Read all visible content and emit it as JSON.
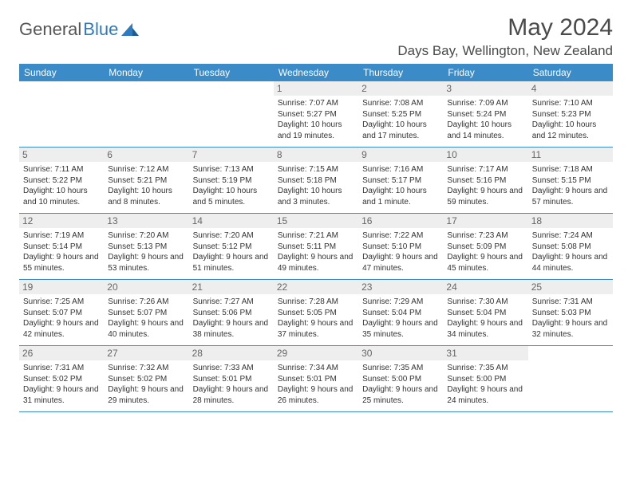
{
  "logo": {
    "text1": "General",
    "text2": "Blue"
  },
  "title": "May 2024",
  "location": "Days Bay, Wellington, New Zealand",
  "colors": {
    "header_bg": "#3b8bc8",
    "header_text": "#ffffff",
    "logo_gray": "#555555",
    "logo_blue": "#2f7bbf",
    "title_color": "#4a4a4a",
    "daynum_bg": "#eeeeee",
    "border": "#3b8bc8",
    "body_text": "#333333"
  },
  "dayNames": [
    "Sunday",
    "Monday",
    "Tuesday",
    "Wednesday",
    "Thursday",
    "Friday",
    "Saturday"
  ],
  "weeks": [
    [
      {
        "day": "",
        "empty": true
      },
      {
        "day": "",
        "empty": true
      },
      {
        "day": "",
        "empty": true
      },
      {
        "day": "1",
        "sunrise": "Sunrise: 7:07 AM",
        "sunset": "Sunset: 5:27 PM",
        "daylight": "Daylight: 10 hours and 19 minutes."
      },
      {
        "day": "2",
        "sunrise": "Sunrise: 7:08 AM",
        "sunset": "Sunset: 5:25 PM",
        "daylight": "Daylight: 10 hours and 17 minutes."
      },
      {
        "day": "3",
        "sunrise": "Sunrise: 7:09 AM",
        "sunset": "Sunset: 5:24 PM",
        "daylight": "Daylight: 10 hours and 14 minutes."
      },
      {
        "day": "4",
        "sunrise": "Sunrise: 7:10 AM",
        "sunset": "Sunset: 5:23 PM",
        "daylight": "Daylight: 10 hours and 12 minutes."
      }
    ],
    [
      {
        "day": "5",
        "sunrise": "Sunrise: 7:11 AM",
        "sunset": "Sunset: 5:22 PM",
        "daylight": "Daylight: 10 hours and 10 minutes."
      },
      {
        "day": "6",
        "sunrise": "Sunrise: 7:12 AM",
        "sunset": "Sunset: 5:21 PM",
        "daylight": "Daylight: 10 hours and 8 minutes."
      },
      {
        "day": "7",
        "sunrise": "Sunrise: 7:13 AM",
        "sunset": "Sunset: 5:19 PM",
        "daylight": "Daylight: 10 hours and 5 minutes."
      },
      {
        "day": "8",
        "sunrise": "Sunrise: 7:15 AM",
        "sunset": "Sunset: 5:18 PM",
        "daylight": "Daylight: 10 hours and 3 minutes."
      },
      {
        "day": "9",
        "sunrise": "Sunrise: 7:16 AM",
        "sunset": "Sunset: 5:17 PM",
        "daylight": "Daylight: 10 hours and 1 minute."
      },
      {
        "day": "10",
        "sunrise": "Sunrise: 7:17 AM",
        "sunset": "Sunset: 5:16 PM",
        "daylight": "Daylight: 9 hours and 59 minutes."
      },
      {
        "day": "11",
        "sunrise": "Sunrise: 7:18 AM",
        "sunset": "Sunset: 5:15 PM",
        "daylight": "Daylight: 9 hours and 57 minutes."
      }
    ],
    [
      {
        "day": "12",
        "sunrise": "Sunrise: 7:19 AM",
        "sunset": "Sunset: 5:14 PM",
        "daylight": "Daylight: 9 hours and 55 minutes."
      },
      {
        "day": "13",
        "sunrise": "Sunrise: 7:20 AM",
        "sunset": "Sunset: 5:13 PM",
        "daylight": "Daylight: 9 hours and 53 minutes."
      },
      {
        "day": "14",
        "sunrise": "Sunrise: 7:20 AM",
        "sunset": "Sunset: 5:12 PM",
        "daylight": "Daylight: 9 hours and 51 minutes."
      },
      {
        "day": "15",
        "sunrise": "Sunrise: 7:21 AM",
        "sunset": "Sunset: 5:11 PM",
        "daylight": "Daylight: 9 hours and 49 minutes."
      },
      {
        "day": "16",
        "sunrise": "Sunrise: 7:22 AM",
        "sunset": "Sunset: 5:10 PM",
        "daylight": "Daylight: 9 hours and 47 minutes."
      },
      {
        "day": "17",
        "sunrise": "Sunrise: 7:23 AM",
        "sunset": "Sunset: 5:09 PM",
        "daylight": "Daylight: 9 hours and 45 minutes."
      },
      {
        "day": "18",
        "sunrise": "Sunrise: 7:24 AM",
        "sunset": "Sunset: 5:08 PM",
        "daylight": "Daylight: 9 hours and 44 minutes."
      }
    ],
    [
      {
        "day": "19",
        "sunrise": "Sunrise: 7:25 AM",
        "sunset": "Sunset: 5:07 PM",
        "daylight": "Daylight: 9 hours and 42 minutes."
      },
      {
        "day": "20",
        "sunrise": "Sunrise: 7:26 AM",
        "sunset": "Sunset: 5:07 PM",
        "daylight": "Daylight: 9 hours and 40 minutes."
      },
      {
        "day": "21",
        "sunrise": "Sunrise: 7:27 AM",
        "sunset": "Sunset: 5:06 PM",
        "daylight": "Daylight: 9 hours and 38 minutes."
      },
      {
        "day": "22",
        "sunrise": "Sunrise: 7:28 AM",
        "sunset": "Sunset: 5:05 PM",
        "daylight": "Daylight: 9 hours and 37 minutes."
      },
      {
        "day": "23",
        "sunrise": "Sunrise: 7:29 AM",
        "sunset": "Sunset: 5:04 PM",
        "daylight": "Daylight: 9 hours and 35 minutes."
      },
      {
        "day": "24",
        "sunrise": "Sunrise: 7:30 AM",
        "sunset": "Sunset: 5:04 PM",
        "daylight": "Daylight: 9 hours and 34 minutes."
      },
      {
        "day": "25",
        "sunrise": "Sunrise: 7:31 AM",
        "sunset": "Sunset: 5:03 PM",
        "daylight": "Daylight: 9 hours and 32 minutes."
      }
    ],
    [
      {
        "day": "26",
        "sunrise": "Sunrise: 7:31 AM",
        "sunset": "Sunset: 5:02 PM",
        "daylight": "Daylight: 9 hours and 31 minutes."
      },
      {
        "day": "27",
        "sunrise": "Sunrise: 7:32 AM",
        "sunset": "Sunset: 5:02 PM",
        "daylight": "Daylight: 9 hours and 29 minutes."
      },
      {
        "day": "28",
        "sunrise": "Sunrise: 7:33 AM",
        "sunset": "Sunset: 5:01 PM",
        "daylight": "Daylight: 9 hours and 28 minutes."
      },
      {
        "day": "29",
        "sunrise": "Sunrise: 7:34 AM",
        "sunset": "Sunset: 5:01 PM",
        "daylight": "Daylight: 9 hours and 26 minutes."
      },
      {
        "day": "30",
        "sunrise": "Sunrise: 7:35 AM",
        "sunset": "Sunset: 5:00 PM",
        "daylight": "Daylight: 9 hours and 25 minutes."
      },
      {
        "day": "31",
        "sunrise": "Sunrise: 7:35 AM",
        "sunset": "Sunset: 5:00 PM",
        "daylight": "Daylight: 9 hours and 24 minutes."
      },
      {
        "day": "",
        "empty": true
      }
    ]
  ]
}
